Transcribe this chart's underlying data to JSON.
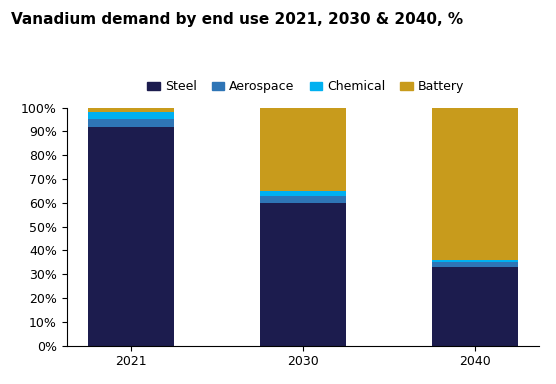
{
  "title": "Vanadium demand by end use 2021, 2030 & 2040, %",
  "categories": [
    "2021",
    "2030",
    "2040"
  ],
  "series": {
    "Steel": [
      92,
      60,
      33
    ],
    "Aerospace": [
      3,
      3,
      2
    ],
    "Chemical": [
      3,
      2,
      1
    ],
    "Battery": [
      2,
      35,
      64
    ]
  },
  "colors": {
    "Steel": "#1c1c4e",
    "Aerospace": "#2e75b6",
    "Chemical": "#00b0f0",
    "Battery": "#c89b1c"
  },
  "legend_order": [
    "Steel",
    "Aerospace",
    "Chemical",
    "Battery"
  ],
  "ylim": [
    0,
    100
  ],
  "ytick_labels": [
    "0%",
    "10%",
    "20%",
    "30%",
    "40%",
    "50%",
    "60%",
    "70%",
    "80%",
    "90%",
    "100%"
  ],
  "bar_width": 0.5,
  "figsize": [
    5.56,
    3.84
  ],
  "dpi": 100,
  "title_fontsize": 11,
  "legend_fontsize": 9,
  "tick_fontsize": 9
}
